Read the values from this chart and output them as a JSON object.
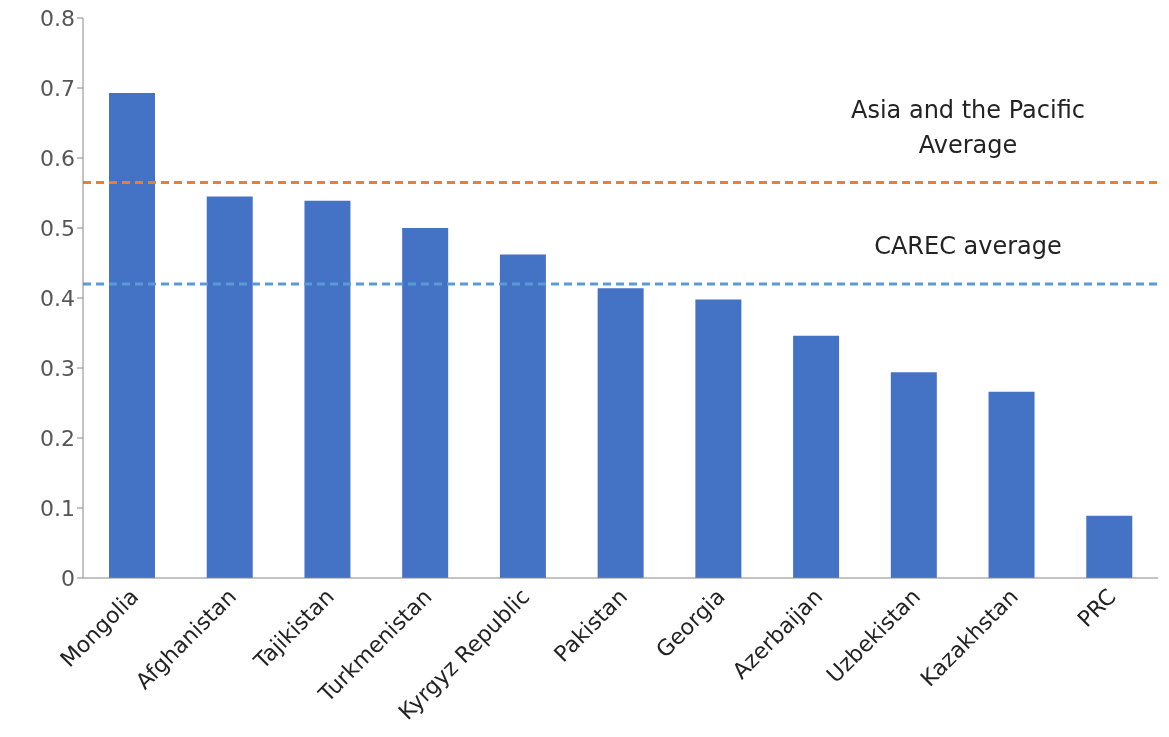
{
  "chart_data": {
    "type": "bar",
    "categories": [
      "Mongolia",
      "Afghanistan",
      "Tajikistan",
      "Turkmenistan",
      "Kyrgyz Republic",
      "Pakistan",
      "Georgia",
      "Azerbaijan",
      "Uzbekistan",
      "Kazakhstan",
      "PRC"
    ],
    "values": [
      0.693,
      0.545,
      0.539,
      0.5,
      0.462,
      0.414,
      0.398,
      0.346,
      0.294,
      0.266,
      0.089
    ],
    "color": "#4472c4",
    "ylim": [
      0,
      0.8
    ],
    "yticks": [
      0,
      0.1,
      0.2,
      0.3,
      0.4,
      0.5,
      0.6,
      0.7,
      0.8
    ],
    "grid": false,
    "legend": false,
    "ref_lines": [
      {
        "axis": "y",
        "value": 0.565,
        "label": "Asia and the Pacific Average",
        "color": "#ed7d31",
        "line_style": "dashed"
      },
      {
        "axis": "y",
        "value": 0.42,
        "label": "CAREC average",
        "color": "#5b9bd5",
        "line_style": "dashed"
      }
    ]
  }
}
